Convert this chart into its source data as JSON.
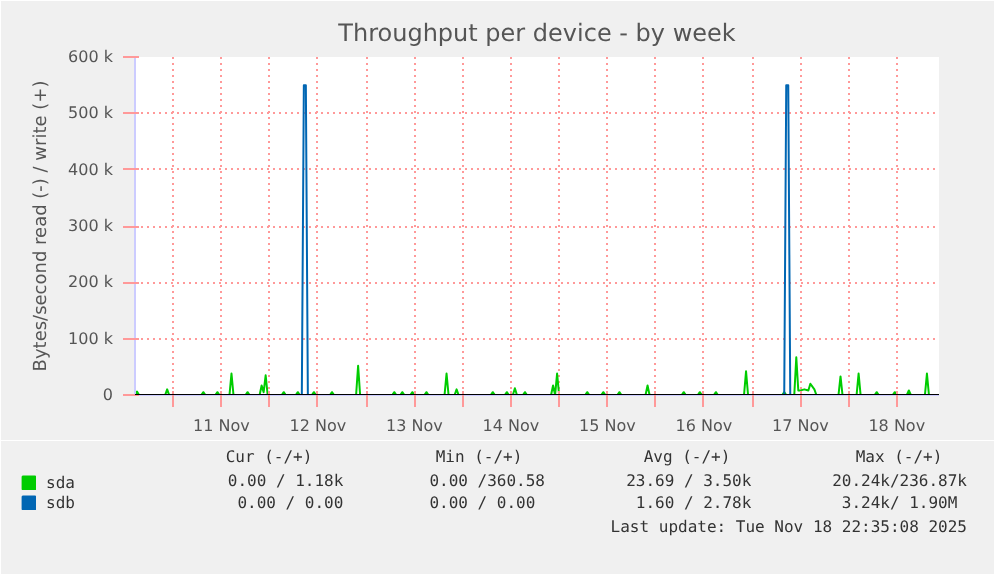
{
  "chart_data": {
    "type": "line",
    "title": "Throughput per device - by week",
    "ylabel": "Bytes/second read (-) / write (+)",
    "xlim": [
      "2025-11-10T14:30",
      "2025-11-18T22:30"
    ],
    "xticks": [
      {
        "value": "2025-11-11T00:00",
        "label": null
      },
      {
        "value": "2025-11-11T12:00",
        "label": "11 Nov"
      },
      {
        "value": "2025-11-12T00:00",
        "label": null
      },
      {
        "value": "2025-11-12T12:00",
        "label": "12 Nov"
      },
      {
        "value": "2025-11-13T00:00",
        "label": null
      },
      {
        "value": "2025-11-13T12:00",
        "label": "13 Nov"
      },
      {
        "value": "2025-11-14T00:00",
        "label": null
      },
      {
        "value": "2025-11-14T12:00",
        "label": "14 Nov"
      },
      {
        "value": "2025-11-15T00:00",
        "label": null
      },
      {
        "value": "2025-11-15T12:00",
        "label": "15 Nov"
      },
      {
        "value": "2025-11-16T00:00",
        "label": null
      },
      {
        "value": "2025-11-16T12:00",
        "label": "16 Nov"
      },
      {
        "value": "2025-11-17T00:00",
        "label": null
      },
      {
        "value": "2025-11-17T12:00",
        "label": "17 Nov"
      },
      {
        "value": "2025-11-18T00:00",
        "label": null
      },
      {
        "value": "2025-11-18T12:00",
        "label": "18 Nov"
      }
    ],
    "ylim": [
      0,
      600000
    ],
    "yticks": [
      0,
      {
        "value": 100000,
        "label": "100 k"
      },
      {
        "value": 200000,
        "label": "200 k"
      },
      {
        "value": 300000,
        "label": "300 k"
      },
      {
        "value": 400000,
        "label": "400 k"
      },
      {
        "value": 500000,
        "label": "500 k"
      },
      {
        "value": 600000,
        "label": "600 k"
      }
    ],
    "grid": true,
    "legend": "bottom left",
    "line_style": "solid",
    "ref_lines": [
      {
        "axis": "y",
        "value": 0,
        "color": "#000000"
      }
    ],
    "annotations": [
      "Cur (-/+)",
      "Min (-/+)",
      "Avg (-/+)",
      "Max (-/+)",
      "0.00 /  1.18k",
      "0.00 /360.58",
      "23.69 /  3.50k",
      "20.24k/236.87k",
      "0.00 /  0.00",
      "0.00 /  0.00",
      "1.60 /  2.78k",
      "3.24k/  1.90M",
      "Last update: Tue Nov 18 22:35:08 2025"
    ],
    "series": [
      {
        "name": "sda",
        "color": "#00cc00",
        "x": [
          "2025-11-10T14:30",
          "2025-11-10T15:00",
          "2025-11-10T15:30",
          "2025-11-10T22:00",
          "2025-11-10T22:30",
          "2025-11-10T23:00",
          "2025-11-11T07:00",
          "2025-11-11T07:30",
          "2025-11-11T08:00",
          "2025-11-11T10:30",
          "2025-11-11T11:00",
          "2025-11-11T11:30",
          "2025-11-11T14:00",
          "2025-11-11T14:30",
          "2025-11-11T15:00",
          "2025-11-11T18:00",
          "2025-11-11T18:30",
          "2025-11-11T19:00",
          "2025-11-11T21:30",
          "2025-11-11T22:00",
          "2025-11-11T22:30",
          "2025-11-11T23:00",
          "2025-11-11T23:30",
          "2025-11-12T03:00",
          "2025-11-12T03:30",
          "2025-11-12T04:00",
          "2025-11-12T06:30",
          "2025-11-12T07:00",
          "2025-11-12T07:30",
          "2025-11-12T10:30",
          "2025-11-12T11:00",
          "2025-11-12T11:30",
          "2025-11-12T15:00",
          "2025-11-12T15:30",
          "2025-11-12T16:00",
          "2025-11-12T21:30",
          "2025-11-12T22:00",
          "2025-11-12T22:30",
          "2025-11-13T06:30",
          "2025-11-13T07:00",
          "2025-11-13T07:30",
          "2025-11-13T08:30",
          "2025-11-13T09:00",
          "2025-11-13T09:30",
          "2025-11-13T11:00",
          "2025-11-13T11:30",
          "2025-11-13T12:00",
          "2025-11-13T14:30",
          "2025-11-13T15:00",
          "2025-11-13T15:30",
          "2025-11-13T19:30",
          "2025-11-13T20:00",
          "2025-11-13T20:30",
          "2025-11-13T22:00",
          "2025-11-13T22:30",
          "2025-11-13T23:00",
          "2025-11-14T07:00",
          "2025-11-14T07:30",
          "2025-11-14T08:00",
          "2025-11-14T10:30",
          "2025-11-14T11:00",
          "2025-11-14T11:30",
          "2025-11-14T12:30",
          "2025-11-14T13:00",
          "2025-11-14T13:30",
          "2025-11-14T15:00",
          "2025-11-14T15:30",
          "2025-11-14T16:00",
          "2025-11-14T22:00",
          "2025-11-14T22:30",
          "2025-11-14T23:00",
          "2025-11-14T23:30",
          "2025-11-15T00:00",
          "2025-11-15T06:30",
          "2025-11-15T07:00",
          "2025-11-15T07:30",
          "2025-11-15T10:30",
          "2025-11-15T11:00",
          "2025-11-15T11:30",
          "2025-11-15T14:30",
          "2025-11-15T15:00",
          "2025-11-15T15:30",
          "2025-11-15T21:30",
          "2025-11-15T22:00",
          "2025-11-15T22:30",
          "2025-11-16T06:30",
          "2025-11-16T07:00",
          "2025-11-16T07:30",
          "2025-11-16T10:30",
          "2025-11-16T11:00",
          "2025-11-16T11:30",
          "2025-11-16T14:30",
          "2025-11-16T15:00",
          "2025-11-16T15:30",
          "2025-11-16T22:00",
          "2025-11-16T22:30",
          "2025-11-16T23:00",
          "2025-11-17T07:30",
          "2025-11-17T08:00",
          "2025-11-17T08:30",
          "2025-11-17T10:30",
          "2025-11-17T11:00",
          "2025-11-17T11:30",
          "2025-11-17T12:00",
          "2025-11-17T13:00",
          "2025-11-17T14:00",
          "2025-11-17T14:30",
          "2025-11-17T15:30",
          "2025-11-17T16:00",
          "2025-11-17T21:30",
          "2025-11-17T22:00",
          "2025-11-17T22:30",
          "2025-11-18T02:00",
          "2025-11-18T02:30",
          "2025-11-18T03:00",
          "2025-11-18T06:30",
          "2025-11-18T07:00",
          "2025-11-18T07:30",
          "2025-11-18T11:00",
          "2025-11-18T11:30",
          "2025-11-18T12:00",
          "2025-11-18T14:30",
          "2025-11-18T15:00",
          "2025-11-18T15:30",
          "2025-11-18T19:00",
          "2025-11-18T19:30",
          "2025-11-18T20:00",
          "2025-11-18T22:30"
        ],
        "values": [
          0,
          6000,
          0,
          0,
          10000,
          0,
          0,
          5000,
          0,
          0,
          5000,
          0,
          0,
          38000,
          0,
          0,
          5000,
          0,
          0,
          17000,
          5000,
          35000,
          0,
          0,
          5000,
          0,
          0,
          5000,
          0,
          0,
          5000,
          0,
          0,
          5000,
          0,
          0,
          52000,
          0,
          0,
          5000,
          0,
          0,
          5000,
          0,
          0,
          5000,
          0,
          0,
          5000,
          0,
          0,
          38000,
          0,
          0,
          10000,
          0,
          0,
          5000,
          0,
          0,
          5000,
          0,
          0,
          12000,
          0,
          0,
          5000,
          0,
          0,
          17000,
          0,
          38000,
          0,
          0,
          5000,
          0,
          0,
          5000,
          0,
          0,
          5000,
          0,
          0,
          17000,
          0,
          0,
          5000,
          0,
          0,
          5000,
          0,
          0,
          5000,
          0,
          0,
          42000,
          0,
          0,
          5000,
          0,
          0,
          67000,
          8000,
          8000,
          10000,
          8000,
          20000,
          10000,
          0,
          0,
          33000,
          0,
          0,
          38000,
          0,
          0,
          5000,
          0,
          0,
          5000,
          0,
          0,
          8000,
          0,
          0,
          38000,
          0,
          0
        ]
      },
      {
        "name": "sdb",
        "color": "#0066b3",
        "x": [
          "2025-11-10T14:30",
          "2025-11-12T08:00",
          "2025-11-12T08:30",
          "2025-11-12T09:00",
          "2025-11-12T09:30",
          "2025-11-17T08:00",
          "2025-11-17T08:30",
          "2025-11-17T09:00",
          "2025-11-17T09:30"
        ],
        "values": [
          0,
          0,
          550000,
          550000,
          0,
          0,
          550000,
          550000,
          0
        ]
      }
    ]
  }
}
